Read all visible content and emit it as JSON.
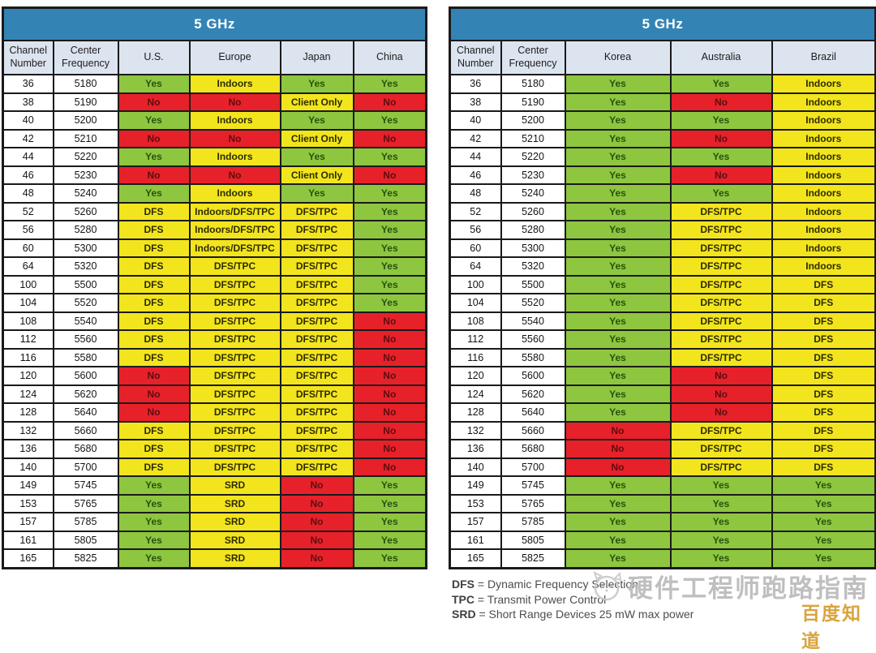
{
  "colors": {
    "band_header_blue": "#3384b5",
    "column_header_bg": "#dce4f0",
    "allowed_green": "#8ec63f",
    "restricted_yellow": "#f2e51d",
    "forbidden_red": "#e7212a",
    "table_border": "#1a1a1a",
    "badge_orange": "#d9a43c",
    "watermark_gray": "#b9b9b9"
  },
  "left_table": {
    "title": "5 GHz",
    "headers": [
      "Channel Number",
      "Center Frequency",
      "U.S.",
      "Europe",
      "Japan",
      "China"
    ],
    "rows": [
      [
        "36",
        "5180",
        [
          [
            "Yes",
            "green"
          ],
          [
            "Indoors",
            "yellow"
          ],
          [
            "Yes",
            "green"
          ],
          [
            "Yes",
            "green"
          ]
        ]
      ],
      [
        "38",
        "5190",
        [
          [
            "No",
            "red"
          ],
          [
            "No",
            "red"
          ],
          [
            "Client Only",
            "yellow"
          ],
          [
            "No",
            "red"
          ]
        ]
      ],
      [
        "40",
        "5200",
        [
          [
            "Yes",
            "green"
          ],
          [
            "Indoors",
            "yellow"
          ],
          [
            "Yes",
            "green"
          ],
          [
            "Yes",
            "green"
          ]
        ]
      ],
      [
        "42",
        "5210",
        [
          [
            "No",
            "red"
          ],
          [
            "No",
            "red"
          ],
          [
            "Client Only",
            "yellow"
          ],
          [
            "No",
            "red"
          ]
        ]
      ],
      [
        "44",
        "5220",
        [
          [
            "Yes",
            "green"
          ],
          [
            "Indoors",
            "yellow"
          ],
          [
            "Yes",
            "green"
          ],
          [
            "Yes",
            "green"
          ]
        ]
      ],
      [
        "46",
        "5230",
        [
          [
            "No",
            "red"
          ],
          [
            "No",
            "red"
          ],
          [
            "Client Only",
            "yellow"
          ],
          [
            "No",
            "red"
          ]
        ]
      ],
      [
        "48",
        "5240",
        [
          [
            "Yes",
            "green"
          ],
          [
            "Indoors",
            "yellow"
          ],
          [
            "Yes",
            "green"
          ],
          [
            "Yes",
            "green"
          ]
        ]
      ],
      [
        "52",
        "5260",
        [
          [
            "DFS",
            "yellow"
          ],
          [
            "Indoors/DFS/TPC",
            "yellow"
          ],
          [
            "DFS/TPC",
            "yellow"
          ],
          [
            "Yes",
            "green"
          ]
        ]
      ],
      [
        "56",
        "5280",
        [
          [
            "DFS",
            "yellow"
          ],
          [
            "Indoors/DFS/TPC",
            "yellow"
          ],
          [
            "DFS/TPC",
            "yellow"
          ],
          [
            "Yes",
            "green"
          ]
        ]
      ],
      [
        "60",
        "5300",
        [
          [
            "DFS",
            "yellow"
          ],
          [
            "Indoors/DFS/TPC",
            "yellow"
          ],
          [
            "DFS/TPC",
            "yellow"
          ],
          [
            "Yes",
            "green"
          ]
        ]
      ],
      [
        "64",
        "5320",
        [
          [
            "DFS",
            "yellow"
          ],
          [
            "DFS/TPC",
            "yellow"
          ],
          [
            "DFS/TPC",
            "yellow"
          ],
          [
            "Yes",
            "green"
          ]
        ]
      ],
      [
        "100",
        "5500",
        [
          [
            "DFS",
            "yellow"
          ],
          [
            "DFS/TPC",
            "yellow"
          ],
          [
            "DFS/TPC",
            "yellow"
          ],
          [
            "Yes",
            "green"
          ]
        ]
      ],
      [
        "104",
        "5520",
        [
          [
            "DFS",
            "yellow"
          ],
          [
            "DFS/TPC",
            "yellow"
          ],
          [
            "DFS/TPC",
            "yellow"
          ],
          [
            "Yes",
            "green"
          ]
        ]
      ],
      [
        "108",
        "5540",
        [
          [
            "DFS",
            "yellow"
          ],
          [
            "DFS/TPC",
            "yellow"
          ],
          [
            "DFS/TPC",
            "yellow"
          ],
          [
            "No",
            "red"
          ]
        ]
      ],
      [
        "112",
        "5560",
        [
          [
            "DFS",
            "yellow"
          ],
          [
            "DFS/TPC",
            "yellow"
          ],
          [
            "DFS/TPC",
            "yellow"
          ],
          [
            "No",
            "red"
          ]
        ]
      ],
      [
        "116",
        "5580",
        [
          [
            "DFS",
            "yellow"
          ],
          [
            "DFS/TPC",
            "yellow"
          ],
          [
            "DFS/TPC",
            "yellow"
          ],
          [
            "No",
            "red"
          ]
        ]
      ],
      [
        "120",
        "5600",
        [
          [
            "No",
            "red"
          ],
          [
            "DFS/TPC",
            "yellow"
          ],
          [
            "DFS/TPC",
            "yellow"
          ],
          [
            "No",
            "red"
          ]
        ]
      ],
      [
        "124",
        "5620",
        [
          [
            "No",
            "red"
          ],
          [
            "DFS/TPC",
            "yellow"
          ],
          [
            "DFS/TPC",
            "yellow"
          ],
          [
            "No",
            "red"
          ]
        ]
      ],
      [
        "128",
        "5640",
        [
          [
            "No",
            "red"
          ],
          [
            "DFS/TPC",
            "yellow"
          ],
          [
            "DFS/TPC",
            "yellow"
          ],
          [
            "No",
            "red"
          ]
        ]
      ],
      [
        "132",
        "5660",
        [
          [
            "DFS",
            "yellow"
          ],
          [
            "DFS/TPC",
            "yellow"
          ],
          [
            "DFS/TPC",
            "yellow"
          ],
          [
            "No",
            "red"
          ]
        ]
      ],
      [
        "136",
        "5680",
        [
          [
            "DFS",
            "yellow"
          ],
          [
            "DFS/TPC",
            "yellow"
          ],
          [
            "DFS/TPC",
            "yellow"
          ],
          [
            "No",
            "red"
          ]
        ]
      ],
      [
        "140",
        "5700",
        [
          [
            "DFS",
            "yellow"
          ],
          [
            "DFS/TPC",
            "yellow"
          ],
          [
            "DFS/TPC",
            "yellow"
          ],
          [
            "No",
            "red"
          ]
        ]
      ],
      [
        "149",
        "5745",
        [
          [
            "Yes",
            "green"
          ],
          [
            "SRD",
            "yellow"
          ],
          [
            "No",
            "red"
          ],
          [
            "Yes",
            "green"
          ]
        ]
      ],
      [
        "153",
        "5765",
        [
          [
            "Yes",
            "green"
          ],
          [
            "SRD",
            "yellow"
          ],
          [
            "No",
            "red"
          ],
          [
            "Yes",
            "green"
          ]
        ]
      ],
      [
        "157",
        "5785",
        [
          [
            "Yes",
            "green"
          ],
          [
            "SRD",
            "yellow"
          ],
          [
            "No",
            "red"
          ],
          [
            "Yes",
            "green"
          ]
        ]
      ],
      [
        "161",
        "5805",
        [
          [
            "Yes",
            "green"
          ],
          [
            "SRD",
            "yellow"
          ],
          [
            "No",
            "red"
          ],
          [
            "Yes",
            "green"
          ]
        ]
      ],
      [
        "165",
        "5825",
        [
          [
            "Yes",
            "green"
          ],
          [
            "SRD",
            "yellow"
          ],
          [
            "No",
            "red"
          ],
          [
            "Yes",
            "green"
          ]
        ]
      ]
    ]
  },
  "right_table": {
    "title": "5 GHz",
    "headers": [
      "Channel Number",
      "Center Frequency",
      "Korea",
      "Australia",
      "Brazil"
    ],
    "rows": [
      [
        "36",
        "5180",
        [
          [
            "Yes",
            "green"
          ],
          [
            "Yes",
            "green"
          ],
          [
            "Indoors",
            "yellow"
          ]
        ]
      ],
      [
        "38",
        "5190",
        [
          [
            "Yes",
            "green"
          ],
          [
            "No",
            "red"
          ],
          [
            "Indoors",
            "yellow"
          ]
        ]
      ],
      [
        "40",
        "5200",
        [
          [
            "Yes",
            "green"
          ],
          [
            "Yes",
            "green"
          ],
          [
            "Indoors",
            "yellow"
          ]
        ]
      ],
      [
        "42",
        "5210",
        [
          [
            "Yes",
            "green"
          ],
          [
            "No",
            "red"
          ],
          [
            "Indoors",
            "yellow"
          ]
        ]
      ],
      [
        "44",
        "5220",
        [
          [
            "Yes",
            "green"
          ],
          [
            "Yes",
            "green"
          ],
          [
            "Indoors",
            "yellow"
          ]
        ]
      ],
      [
        "46",
        "5230",
        [
          [
            "Yes",
            "green"
          ],
          [
            "No",
            "red"
          ],
          [
            "Indoors",
            "yellow"
          ]
        ]
      ],
      [
        "48",
        "5240",
        [
          [
            "Yes",
            "green"
          ],
          [
            "Yes",
            "green"
          ],
          [
            "Indoors",
            "yellow"
          ]
        ]
      ],
      [
        "52",
        "5260",
        [
          [
            "Yes",
            "green"
          ],
          [
            "DFS/TPC",
            "yellow"
          ],
          [
            "Indoors",
            "yellow"
          ]
        ]
      ],
      [
        "56",
        "5280",
        [
          [
            "Yes",
            "green"
          ],
          [
            "DFS/TPC",
            "yellow"
          ],
          [
            "Indoors",
            "yellow"
          ]
        ]
      ],
      [
        "60",
        "5300",
        [
          [
            "Yes",
            "green"
          ],
          [
            "DFS/TPC",
            "yellow"
          ],
          [
            "Indoors",
            "yellow"
          ]
        ]
      ],
      [
        "64",
        "5320",
        [
          [
            "Yes",
            "green"
          ],
          [
            "DFS/TPC",
            "yellow"
          ],
          [
            "Indoors",
            "yellow"
          ]
        ]
      ],
      [
        "100",
        "5500",
        [
          [
            "Yes",
            "green"
          ],
          [
            "DFS/TPC",
            "yellow"
          ],
          [
            "DFS",
            "yellow"
          ]
        ]
      ],
      [
        "104",
        "5520",
        [
          [
            "Yes",
            "green"
          ],
          [
            "DFS/TPC",
            "yellow"
          ],
          [
            "DFS",
            "yellow"
          ]
        ]
      ],
      [
        "108",
        "5540",
        [
          [
            "Yes",
            "green"
          ],
          [
            "DFS/TPC",
            "yellow"
          ],
          [
            "DFS",
            "yellow"
          ]
        ]
      ],
      [
        "112",
        "5560",
        [
          [
            "Yes",
            "green"
          ],
          [
            "DFS/TPC",
            "yellow"
          ],
          [
            "DFS",
            "yellow"
          ]
        ]
      ],
      [
        "116",
        "5580",
        [
          [
            "Yes",
            "green"
          ],
          [
            "DFS/TPC",
            "yellow"
          ],
          [
            "DFS",
            "yellow"
          ]
        ]
      ],
      [
        "120",
        "5600",
        [
          [
            "Yes",
            "green"
          ],
          [
            "No",
            "red"
          ],
          [
            "DFS",
            "yellow"
          ]
        ]
      ],
      [
        "124",
        "5620",
        [
          [
            "Yes",
            "green"
          ],
          [
            "No",
            "red"
          ],
          [
            "DFS",
            "yellow"
          ]
        ]
      ],
      [
        "128",
        "5640",
        [
          [
            "Yes",
            "green"
          ],
          [
            "No",
            "red"
          ],
          [
            "DFS",
            "yellow"
          ]
        ]
      ],
      [
        "132",
        "5660",
        [
          [
            "No",
            "red"
          ],
          [
            "DFS/TPC",
            "yellow"
          ],
          [
            "DFS",
            "yellow"
          ]
        ]
      ],
      [
        "136",
        "5680",
        [
          [
            "No",
            "red"
          ],
          [
            "DFS/TPC",
            "yellow"
          ],
          [
            "DFS",
            "yellow"
          ]
        ]
      ],
      [
        "140",
        "5700",
        [
          [
            "No",
            "red"
          ],
          [
            "DFS/TPC",
            "yellow"
          ],
          [
            "DFS",
            "yellow"
          ]
        ]
      ],
      [
        "149",
        "5745",
        [
          [
            "Yes",
            "green"
          ],
          [
            "Yes",
            "green"
          ],
          [
            "Yes",
            "green"
          ]
        ]
      ],
      [
        "153",
        "5765",
        [
          [
            "Yes",
            "green"
          ],
          [
            "Yes",
            "green"
          ],
          [
            "Yes",
            "green"
          ]
        ]
      ],
      [
        "157",
        "5785",
        [
          [
            "Yes",
            "green"
          ],
          [
            "Yes",
            "green"
          ],
          [
            "Yes",
            "green"
          ]
        ]
      ],
      [
        "161",
        "5805",
        [
          [
            "Yes",
            "green"
          ],
          [
            "Yes",
            "green"
          ],
          [
            "Yes",
            "green"
          ]
        ]
      ],
      [
        "165",
        "5825",
        [
          [
            "Yes",
            "green"
          ],
          [
            "Yes",
            "green"
          ],
          [
            "Yes",
            "green"
          ]
        ]
      ]
    ]
  },
  "legend": {
    "lines": [
      {
        "abbr": "DFS",
        "text": "= Dynamic Frequency Selection"
      },
      {
        "abbr": "TPC",
        "text": "= Transmit Power Control"
      },
      {
        "abbr": "SRD",
        "text": "= Short Range Devices 25 mW max power"
      }
    ]
  },
  "watermark": {
    "logo": "cat-face-icon",
    "text": "硬件工程师跑路指南",
    "badge": "百度知道"
  }
}
